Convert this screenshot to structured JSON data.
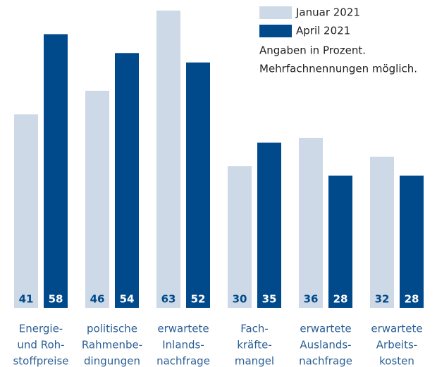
{
  "chart_data": {
    "type": "bar",
    "categories": [
      [
        "Energie-",
        "und Roh-",
        "stoffpreise"
      ],
      [
        "politische",
        "Rahmenbe-",
        "dingungen"
      ],
      [
        "erwartete",
        "Inlands-",
        "nachfrage"
      ],
      [
        "Fach-",
        "kräfte-",
        "mangel"
      ],
      [
        "erwartete",
        "Auslands-",
        "nachfrage"
      ],
      [
        "erwartete",
        "Arbeits-",
        "kosten"
      ]
    ],
    "series": [
      {
        "name": "Januar 2021",
        "color": "#cdd9e6",
        "values": [
          41,
          46,
          63,
          30,
          36,
          32
        ]
      },
      {
        "name": "April 2021",
        "color": "#004a8c",
        "values": [
          58,
          54,
          52,
          35,
          28,
          28
        ]
      }
    ],
    "notes": [
      "Angaben in Prozent.",
      "Mehrfachnennungen möglich."
    ],
    "ylim": [
      0,
      63
    ]
  }
}
